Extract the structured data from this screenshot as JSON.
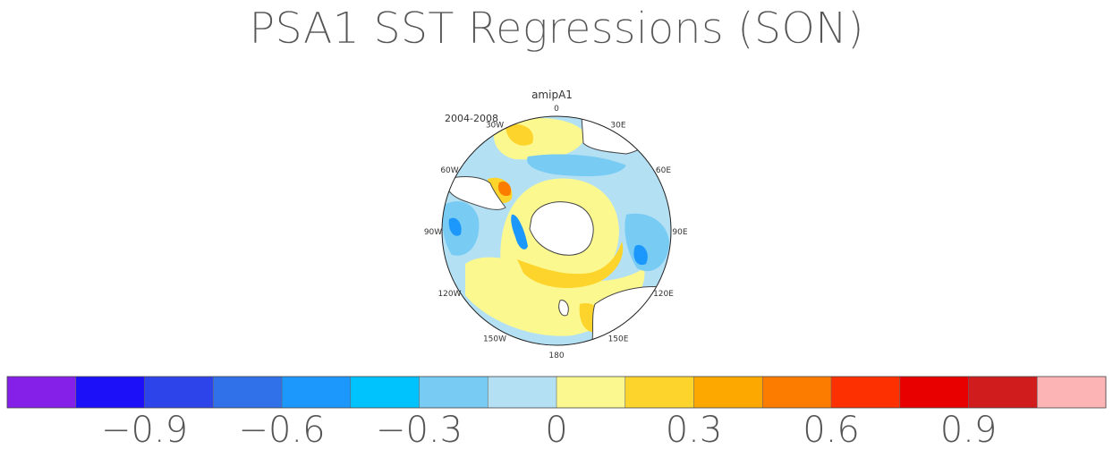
{
  "title": "PSA1 SST Regressions (SON)",
  "panel": {
    "model": "amipA1",
    "period": "2004-2008"
  },
  "longitude_labels": [
    "0",
    "30E",
    "60E",
    "90E",
    "120E",
    "150E",
    "180",
    "150W",
    "120W",
    "90W",
    "60W",
    "30W"
  ],
  "colorbar": {
    "colors": [
      "#8420e8",
      "#1c10f8",
      "#2c44ea",
      "#3070e8",
      "#1c98fc",
      "#00c2fc",
      "#78ccf4",
      "#b4e0f4",
      "#fcf890",
      "#fcd42c",
      "#fca800",
      "#fc7c00",
      "#fc3000",
      "#e80000",
      "#d01c1c",
      "#fcb4b4"
    ],
    "tick_labels": [
      "−0.9",
      "−0.6",
      "−0.3",
      "0",
      "0.3",
      "0.6",
      "0.9"
    ],
    "tick_values": [
      -0.9,
      -0.6,
      -0.3,
      0,
      0.3,
      0.6,
      0.9
    ],
    "levels": [
      -1.05,
      -0.9,
      -0.75,
      -0.6,
      -0.45,
      -0.3,
      -0.15,
      0,
      0.15,
      0.3,
      0.45,
      0.6,
      0.75,
      0.9,
      1.05
    ]
  }
}
